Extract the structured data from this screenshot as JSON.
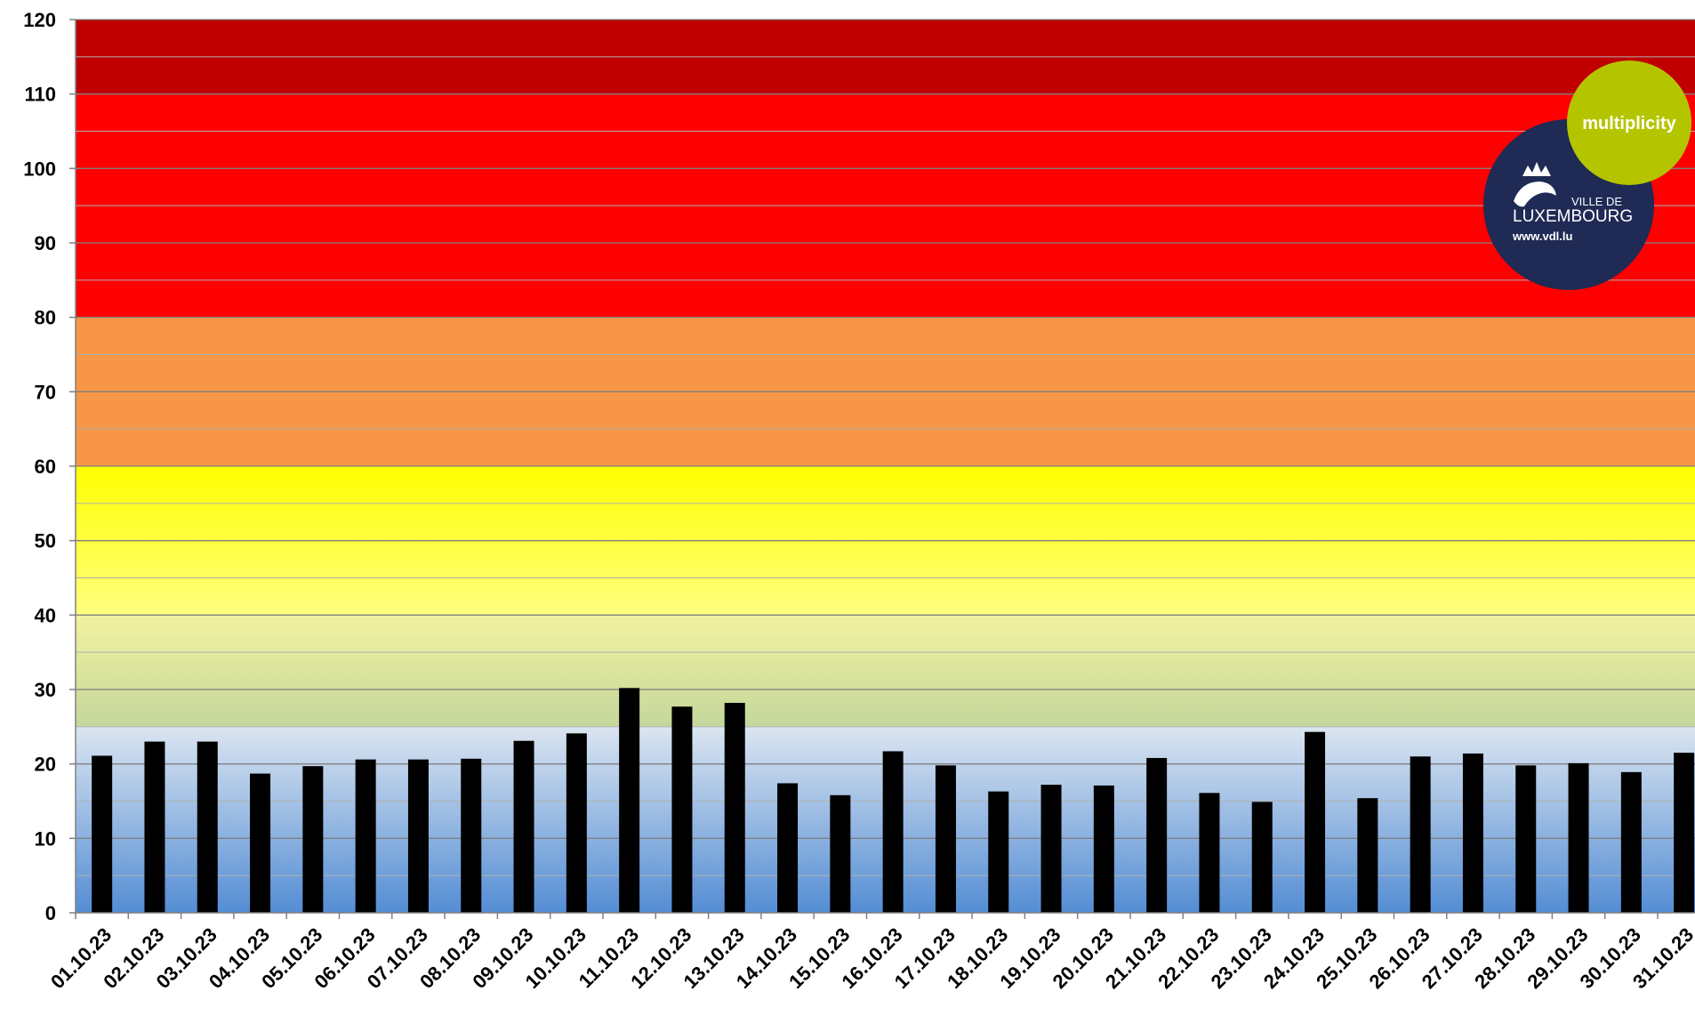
{
  "chart_data": {
    "type": "bar",
    "categories": [
      "01.10.23",
      "02.10.23",
      "03.10.23",
      "04.10.23",
      "05.10.23",
      "06.10.23",
      "07.10.23",
      "08.10.23",
      "09.10.23",
      "10.10.23",
      "11.10.23",
      "12.10.23",
      "13.10.23",
      "14.10.23",
      "15.10.23",
      "16.10.23",
      "17.10.23",
      "18.10.23",
      "19.10.23",
      "20.10.23",
      "21.10.23",
      "22.10.23",
      "23.10.23",
      "24.10.23",
      "25.10.23",
      "26.10.23",
      "27.10.23",
      "28.10.23",
      "29.10.23",
      "30.10.23",
      "31.10.23"
    ],
    "values": [
      21.1,
      23.0,
      23.0,
      18.7,
      19.7,
      20.6,
      20.6,
      20.7,
      23.1,
      24.1,
      30.2,
      27.7,
      28.2,
      17.4,
      15.8,
      21.7,
      19.8,
      16.3,
      17.2,
      17.1,
      20.8,
      16.1,
      14.9,
      24.3,
      15.4,
      21.0,
      21.4,
      19.8,
      20.1,
      18.9,
      21.5
    ],
    "ylim": [
      0,
      120
    ],
    "yticks": [
      "0",
      "10",
      "20",
      "30",
      "40",
      "50",
      "60",
      "70",
      "80",
      "90",
      "100",
      "110",
      "120"
    ],
    "grid": true,
    "bar_color": "#000000",
    "background_bands": [
      {
        "from": 0,
        "to": 25,
        "color_bottom": "#548dd4",
        "color_top": "#dbe5f1"
      },
      {
        "from": 25,
        "to": 40,
        "color_bottom": "#c4d79b",
        "color_top": "#f2f2a0"
      },
      {
        "from": 40,
        "to": 60,
        "color_bottom": "#ffff80",
        "color_top": "#ffff00"
      },
      {
        "from": 60,
        "to": 80,
        "color_bottom": "#f79646",
        "color_top": "#f79646"
      },
      {
        "from": 80,
        "to": 110,
        "color_bottom": "#ff0000",
        "color_top": "#ff0000"
      },
      {
        "from": 110,
        "to": 120,
        "color_bottom": "#c00000",
        "color_top": "#c00000"
      }
    ]
  },
  "logos": {
    "multiplicity": {
      "text": "multiplicity",
      "color": "#b4c500"
    },
    "vdl": {
      "line1": "VILLE DE",
      "line2": "LUXEMBOURG",
      "url": "www.vdl.lu",
      "color": "#1f2a55"
    }
  }
}
